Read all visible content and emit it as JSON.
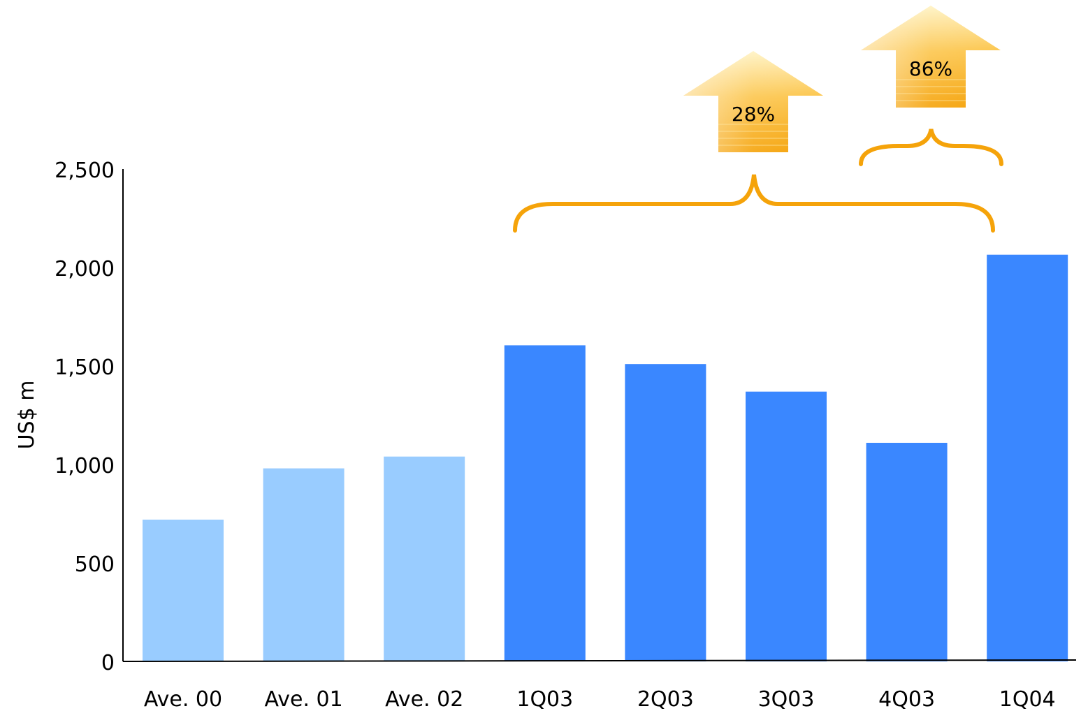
{
  "chart_data": {
    "type": "bar",
    "title": "",
    "xlabel": "",
    "ylabel": "US$ m",
    "ylim": [
      0,
      2500
    ],
    "yticks": [
      0,
      500,
      1000,
      1500,
      2000,
      2500
    ],
    "ytick_labels": [
      "0",
      "500",
      "1,000",
      "1,500",
      "2,000",
      "2,500"
    ],
    "categories": [
      "Ave. 00",
      "Ave. 01",
      "Ave. 02",
      "1Q03",
      "2Q03",
      "3Q03",
      "4Q03",
      "1Q04"
    ],
    "values": [
      720,
      980,
      1040,
      1605,
      1510,
      1370,
      1110,
      2065
    ],
    "bar_colors": [
      "#99CCFF",
      "#99CCFF",
      "#99CCFF",
      "#3A87FF",
      "#3A87FF",
      "#3A87FF",
      "#3A87FF",
      "#3A87FF"
    ],
    "grid": false,
    "annotations": [
      {
        "text": "28%",
        "from_category": "1Q03",
        "to_category": "1Q04",
        "type": "brace-arrow"
      },
      {
        "text": "86%",
        "from_category": "4Q03",
        "to_category": "1Q04",
        "type": "brace-arrow"
      }
    ],
    "annotation_color": "#F5A30A"
  }
}
